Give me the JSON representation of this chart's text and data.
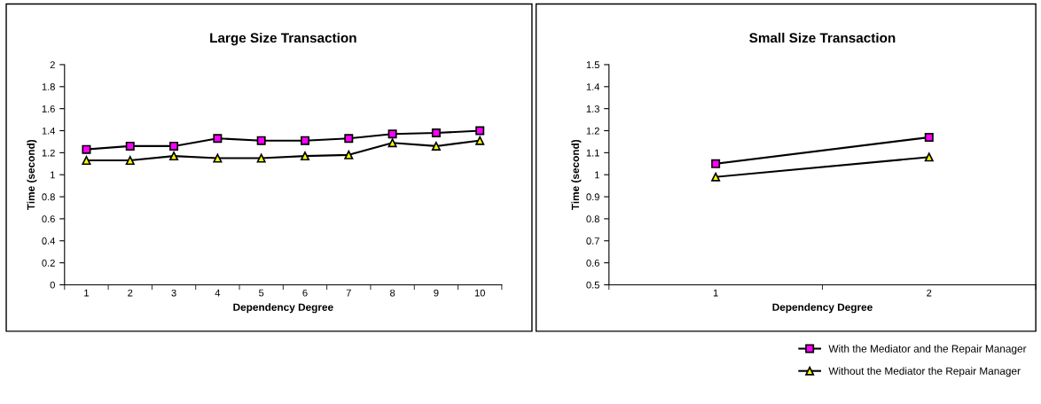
{
  "chart_data": [
    {
      "type": "line",
      "title": "Large Size Transaction",
      "xlabel": "Dependency Degree",
      "ylabel": "Time (second)",
      "categories": [
        "1",
        "2",
        "3",
        "4",
        "5",
        "6",
        "7",
        "8",
        "9",
        "10"
      ],
      "ylim": [
        0,
        2
      ],
      "yticks": [
        0,
        0.2,
        0.4,
        0.6,
        0.8,
        1,
        1.2,
        1.4,
        1.6,
        1.8,
        2
      ],
      "grid": false,
      "legend": false,
      "series": [
        {
          "color": "#ff00ff",
          "marker": "square",
          "values": [
            1.23,
            1.26,
            1.26,
            1.33,
            1.31,
            1.31,
            1.33,
            1.37,
            1.38,
            1.4
          ]
        },
        {
          "color": "#ffff00",
          "marker": "triangle",
          "values": [
            1.13,
            1.13,
            1.17,
            1.15,
            1.15,
            1.17,
            1.18,
            1.29,
            1.26,
            1.31
          ]
        }
      ]
    },
    {
      "type": "line",
      "title": "Small Size Transaction",
      "xlabel": "Dependency Degree",
      "ylabel": "Time (second)",
      "categories": [
        "1",
        "2"
      ],
      "ylim": [
        0.5,
        1.5
      ],
      "yticks": [
        0.5,
        0.6,
        0.7,
        0.8,
        0.9,
        1,
        1.1,
        1.2,
        1.3,
        1.4,
        1.5
      ],
      "grid": false,
      "legend": "bottom right",
      "series": [
        {
          "name": "With the Mediator and the Repair Manager",
          "color": "#ff00ff",
          "marker": "square",
          "values": [
            1.05,
            1.17
          ]
        },
        {
          "name": "Without the Mediator the Repair Manager",
          "color": "#ffff00",
          "marker": "triangle",
          "values": [
            0.99,
            1.08
          ]
        }
      ]
    }
  ]
}
